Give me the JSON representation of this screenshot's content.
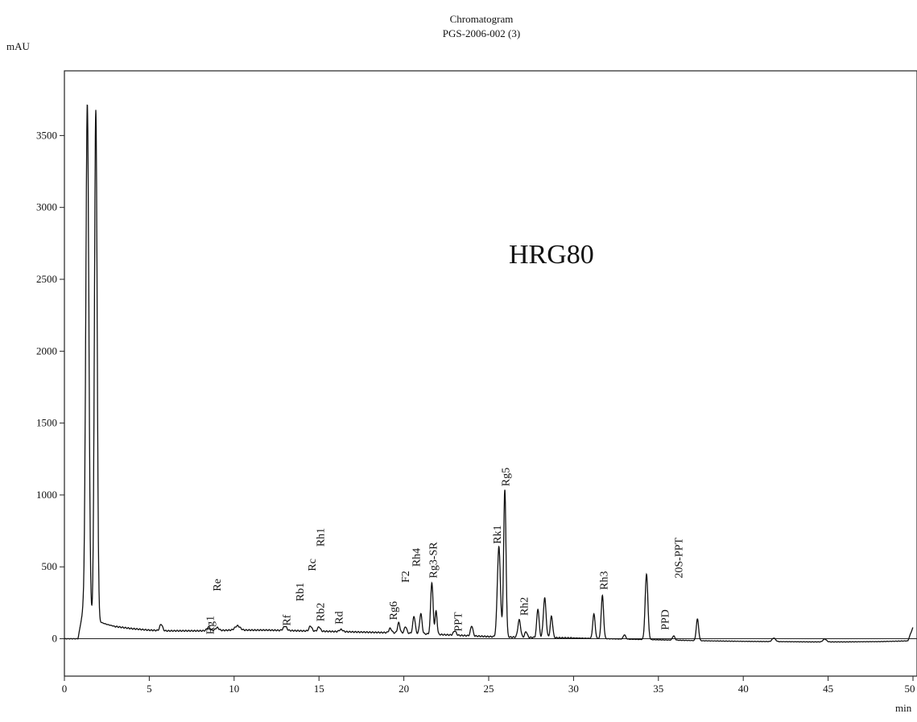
{
  "chart_data": {
    "type": "line",
    "title": "Chromatogram",
    "subtitle": "PGS-2006-002 (3)",
    "ylabel": "mAU",
    "xlabel": "min",
    "xlim": [
      0,
      50
    ],
    "ylim": [
      -260,
      3950
    ],
    "xticks": [
      0,
      5,
      10,
      15,
      20,
      25,
      30,
      35,
      40,
      45,
      50
    ],
    "xtick_labels": [
      "0",
      "5",
      "10",
      "15",
      "20",
      "25",
      "30",
      "35",
      "40",
      "45",
      "50"
    ],
    "yticks": [
      0,
      500,
      1000,
      1500,
      2000,
      2500,
      3000,
      3500
    ],
    "ytick_labels": [
      "0",
      "500",
      "1000",
      "1500",
      "2000",
      "2500",
      "3000",
      "3500"
    ],
    "annotation": "HRG80",
    "baseline": [
      [
        0,
        0
      ],
      [
        0.8,
        0
      ],
      [
        1.1,
        200
      ],
      [
        1.5,
        150
      ],
      [
        1.8,
        120
      ],
      [
        2,
        120
      ],
      [
        2.5,
        100
      ],
      [
        3,
        85
      ],
      [
        4,
        70
      ],
      [
        5,
        60
      ],
      [
        6,
        55
      ],
      [
        8,
        55
      ],
      [
        10,
        60
      ],
      [
        12,
        60
      ],
      [
        14,
        55
      ],
      [
        16,
        50
      ],
      [
        18,
        45
      ],
      [
        20,
        40
      ],
      [
        22,
        30
      ],
      [
        24,
        20
      ],
      [
        25,
        15
      ],
      [
        26,
        12
      ],
      [
        27,
        10
      ],
      [
        28,
        8
      ],
      [
        30,
        5
      ],
      [
        32,
        0
      ],
      [
        34,
        -5
      ],
      [
        36,
        -10
      ],
      [
        38,
        -15
      ],
      [
        40,
        -18
      ],
      [
        42,
        -20
      ],
      [
        44,
        -22
      ],
      [
        46,
        -22
      ],
      [
        48,
        -20
      ],
      [
        49.7,
        -15
      ],
      [
        50,
        80
      ]
    ],
    "peaks": [
      {
        "t": 1.35,
        "h": 3550,
        "w": 0.09
      },
      {
        "t": 1.85,
        "h": 3560,
        "w": 0.08
      },
      {
        "t": 5.7,
        "h": 45,
        "w": 0.08
      },
      {
        "t": 8.5,
        "h": 25,
        "w": 0.1
      },
      {
        "t": 9.0,
        "h": 20,
        "w": 0.1
      },
      {
        "t": 10.2,
        "h": 30,
        "w": 0.15
      },
      {
        "t": 13.0,
        "h": 30,
        "w": 0.1
      },
      {
        "t": 14.5,
        "h": 35,
        "w": 0.08
      },
      {
        "t": 15.0,
        "h": 30,
        "w": 0.08
      },
      {
        "t": 16.3,
        "h": 15,
        "w": 0.1
      },
      {
        "t": 19.2,
        "h": 30,
        "w": 0.08
      },
      {
        "t": 19.7,
        "h": 70,
        "w": 0.07
      },
      {
        "t": 20.1,
        "h": 45,
        "w": 0.07
      },
      {
        "t": 20.6,
        "h": 120,
        "w": 0.07
      },
      {
        "t": 21.0,
        "h": 140,
        "w": 0.07
      },
      {
        "t": 21.65,
        "h": 360,
        "w": 0.07
      },
      {
        "t": 21.9,
        "h": 160,
        "w": 0.06
      },
      {
        "t": 23.0,
        "h": 30,
        "w": 0.08
      },
      {
        "t": 24.0,
        "h": 70,
        "w": 0.07
      },
      {
        "t": 25.6,
        "h": 625,
        "w": 0.09
      },
      {
        "t": 25.95,
        "h": 1020,
        "w": 0.07
      },
      {
        "t": 26.8,
        "h": 120,
        "w": 0.08
      },
      {
        "t": 27.2,
        "h": 40,
        "w": 0.07
      },
      {
        "t": 27.9,
        "h": 200,
        "w": 0.07
      },
      {
        "t": 28.3,
        "h": 275,
        "w": 0.08
      },
      {
        "t": 28.7,
        "h": 150,
        "w": 0.07
      },
      {
        "t": 31.2,
        "h": 170,
        "w": 0.07
      },
      {
        "t": 31.7,
        "h": 300,
        "w": 0.07
      },
      {
        "t": 33.0,
        "h": 30,
        "w": 0.07
      },
      {
        "t": 34.3,
        "h": 455,
        "w": 0.08
      },
      {
        "t": 35.9,
        "h": 30,
        "w": 0.07
      },
      {
        "t": 37.3,
        "h": 150,
        "w": 0.07
      },
      {
        "t": 41.8,
        "h": 25,
        "w": 0.1
      },
      {
        "t": 44.8,
        "h": 20,
        "w": 0.1
      }
    ],
    "peak_labels": [
      {
        "text": "Rg1",
        "t": 8.8,
        "y": 30
      },
      {
        "text": "Re",
        "t": 9.2,
        "y": 330
      },
      {
        "text": "Rf",
        "t": 13.3,
        "y": 90
      },
      {
        "text": "Rb1",
        "t": 14.1,
        "y": 260
      },
      {
        "text": "Rc",
        "t": 14.8,
        "y": 470
      },
      {
        "text": "Rh1",
        "t": 15.3,
        "y": 640
      },
      {
        "text": "Rb2",
        "t": 15.3,
        "y": 120
      },
      {
        "text": "Rd",
        "t": 16.4,
        "y": 100
      },
      {
        "text": "Rg6",
        "t": 19.6,
        "y": 130
      },
      {
        "text": "F2",
        "t": 20.3,
        "y": 390
      },
      {
        "text": "Rh4",
        "t": 20.95,
        "y": 500
      },
      {
        "text": "Rg3-SR",
        "t": 21.95,
        "y": 420
      },
      {
        "text": "PPT",
        "t": 23.4,
        "y": 50
      },
      {
        "text": "Rk1",
        "t": 25.7,
        "y": 660
      },
      {
        "text": "Rg5",
        "t": 26.2,
        "y": 1060
      },
      {
        "text": "Rh2",
        "t": 27.3,
        "y": 160
      },
      {
        "text": "Rh3",
        "t": 32.0,
        "y": 340
      },
      {
        "text": "PPD",
        "t": 35.6,
        "y": 60
      },
      {
        "text": "20S-PPT",
        "t": 36.4,
        "y": 420
      }
    ]
  }
}
